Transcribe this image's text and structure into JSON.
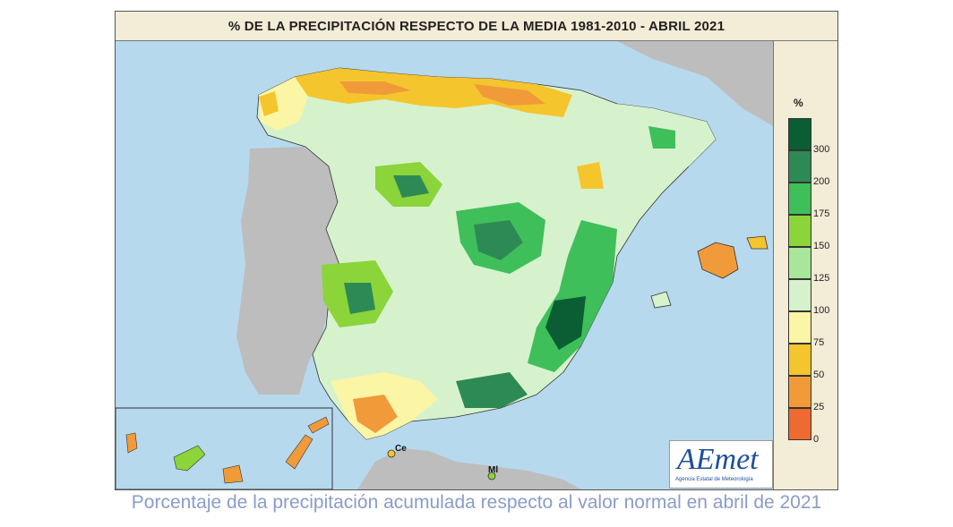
{
  "title": "% DE LA PRECIPITACIÓN RESPECTO DE LA MEDIA 1981-2010 - ABRIL 2021",
  "caption": "Porcentaje de la precipitación acumulada respecto al valor normal en abril de 2021",
  "legend": {
    "unit": "%",
    "classes": [
      {
        "label": "300",
        "color": "#0b5e33"
      },
      {
        "label": "200",
        "color": "#2e8a55"
      },
      {
        "label": "175",
        "color": "#3fbf5a"
      },
      {
        "label": "150",
        "color": "#8bd43a"
      },
      {
        "label": "125",
        "color": "#a8e69a"
      },
      {
        "label": "100",
        "color": "#d6f2cc"
      },
      {
        "label": "75",
        "color": "#fbf5a6"
      },
      {
        "label": "50",
        "color": "#f5c52e"
      },
      {
        "label": "25",
        "color": "#f19a3a"
      },
      {
        "label": "0",
        "color": "#ee6a30"
      }
    ],
    "top_color": "#0b5e33"
  },
  "map_labels": {
    "ceuta": "Ce",
    "melilla": "Ml"
  },
  "logo": {
    "text": "AEmet",
    "subtitle": "Agencia Estatal de Meteorología"
  },
  "colors": {
    "sea": "#b7d9ee",
    "land_outside": "#bdbdbd"
  }
}
